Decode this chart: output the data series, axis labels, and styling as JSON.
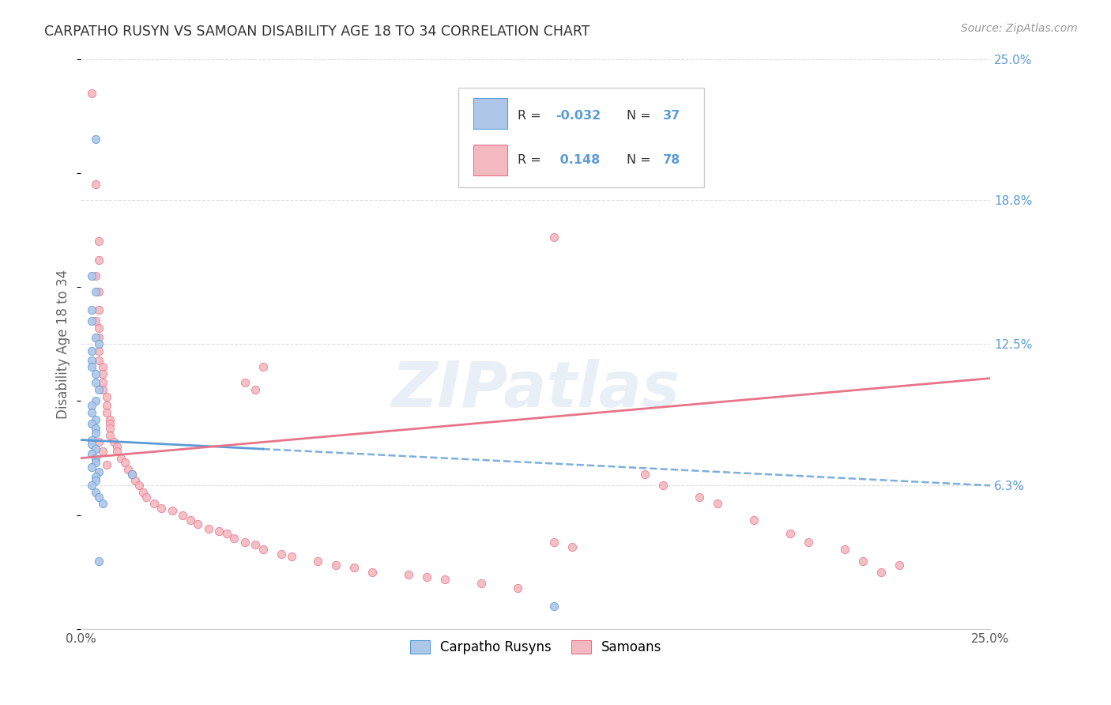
{
  "title": "CARPATHO RUSYN VS SAMOAN DISABILITY AGE 18 TO 34 CORRELATION CHART",
  "source": "Source: ZipAtlas.com",
  "ylabel": "Disability Age 18 to 34",
  "xlim": [
    0.0,
    0.25
  ],
  "ylim": [
    0.0,
    0.25
  ],
  "yticks": [
    0.0,
    0.063,
    0.125,
    0.188,
    0.25
  ],
  "yticklabels_right": [
    "",
    "6.3%",
    "12.5%",
    "18.8%",
    "25.0%"
  ],
  "tick_label_color_right": "#5b9bd5",
  "carpatho_line_color": "#5b9bd5",
  "samoan_line_color": "#e8748a",
  "carpatho_dot_color": "#aec6e8",
  "samoan_dot_color": "#f4b8c0",
  "background_color": "#ffffff",
  "grid_color": "#dddddd",
  "title_color": "#333333",
  "axis_label_color": "#666666",
  "dot_size": 55,
  "dot_alpha": 0.9,
  "watermark": "ZIPatlas",
  "carpatho_R": "-0.032",
  "carpatho_N": "37",
  "samoan_R": "0.148",
  "samoan_N": "78",
  "carpatho_x": [
    0.004,
    0.003,
    0.004,
    0.003,
    0.003,
    0.004,
    0.005,
    0.003,
    0.003,
    0.003,
    0.004,
    0.004,
    0.005,
    0.004,
    0.003,
    0.003,
    0.004,
    0.003,
    0.004,
    0.004,
    0.003,
    0.003,
    0.004,
    0.003,
    0.004,
    0.004,
    0.003,
    0.005,
    0.004,
    0.004,
    0.003,
    0.004,
    0.005,
    0.006,
    0.005,
    0.014,
    0.13
  ],
  "carpatho_y": [
    0.215,
    0.155,
    0.148,
    0.14,
    0.135,
    0.128,
    0.125,
    0.122,
    0.118,
    0.115,
    0.112,
    0.108,
    0.105,
    0.1,
    0.098,
    0.095,
    0.092,
    0.09,
    0.088,
    0.086,
    0.083,
    0.081,
    0.079,
    0.077,
    0.075,
    0.073,
    0.071,
    0.069,
    0.067,
    0.065,
    0.063,
    0.06,
    0.058,
    0.055,
    0.03,
    0.068,
    0.01
  ],
  "samoan_x": [
    0.003,
    0.004,
    0.005,
    0.005,
    0.004,
    0.005,
    0.005,
    0.004,
    0.005,
    0.005,
    0.005,
    0.005,
    0.006,
    0.006,
    0.006,
    0.006,
    0.007,
    0.007,
    0.007,
    0.008,
    0.008,
    0.008,
    0.008,
    0.009,
    0.01,
    0.01,
    0.011,
    0.012,
    0.013,
    0.014,
    0.015,
    0.016,
    0.017,
    0.018,
    0.02,
    0.022,
    0.025,
    0.028,
    0.03,
    0.032,
    0.035,
    0.038,
    0.04,
    0.042,
    0.045,
    0.048,
    0.05,
    0.055,
    0.058,
    0.065,
    0.07,
    0.075,
    0.08,
    0.09,
    0.095,
    0.1,
    0.11,
    0.12,
    0.13,
    0.135,
    0.155,
    0.16,
    0.17,
    0.175,
    0.185,
    0.195,
    0.2,
    0.21,
    0.215,
    0.22,
    0.045,
    0.048,
    0.05,
    0.13,
    0.225,
    0.005,
    0.006,
    0.007
  ],
  "samoan_y": [
    0.235,
    0.195,
    0.17,
    0.162,
    0.155,
    0.148,
    0.14,
    0.135,
    0.132,
    0.128,
    0.122,
    0.118,
    0.115,
    0.112,
    0.108,
    0.105,
    0.102,
    0.098,
    0.095,
    0.092,
    0.09,
    0.088,
    0.085,
    0.082,
    0.08,
    0.078,
    0.075,
    0.073,
    0.07,
    0.068,
    0.065,
    0.063,
    0.06,
    0.058,
    0.055,
    0.053,
    0.052,
    0.05,
    0.048,
    0.046,
    0.044,
    0.043,
    0.042,
    0.04,
    0.038,
    0.037,
    0.035,
    0.033,
    0.032,
    0.03,
    0.028,
    0.027,
    0.025,
    0.024,
    0.023,
    0.022,
    0.02,
    0.018,
    0.038,
    0.036,
    0.068,
    0.063,
    0.058,
    0.055,
    0.048,
    0.042,
    0.038,
    0.035,
    0.03,
    0.025,
    0.108,
    0.105,
    0.115,
    0.172,
    0.028,
    0.082,
    0.078,
    0.072
  ],
  "carpatho_trend": [
    0.082,
    0.075
  ],
  "samoan_trend_solid": [
    0.075,
    0.11
  ],
  "carpatho_dashed": [
    0.075,
    0.062
  ],
  "trend_x": [
    0.0,
    0.25
  ]
}
